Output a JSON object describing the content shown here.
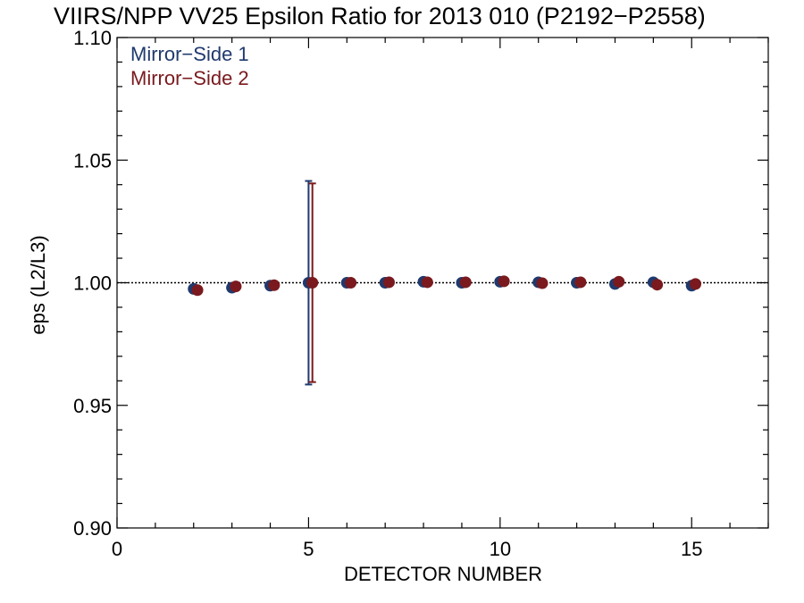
{
  "chart_data": {
    "type": "scatter",
    "title": "VIIRS/NPP VV25 Epsilon Ratio for 2013 010 (P2192−P2558)",
    "xlabel": "DETECTOR NUMBER",
    "ylabel": "eps (L2/L3)",
    "xlim": [
      0,
      17
    ],
    "ylim": [
      0.9,
      1.1
    ],
    "xticks": [
      0,
      5,
      10,
      15
    ],
    "xtick_labels": [
      "0",
      "5",
      "10",
      "15"
    ],
    "yticks": [
      0.9,
      0.95,
      1.0,
      1.05,
      1.1
    ],
    "ytick_labels": [
      "0.90",
      "0.95",
      "1.00",
      "1.05",
      "1.10"
    ],
    "reference_line": 1.0,
    "legend_position": "top-left",
    "series": [
      {
        "name": "Mirror−Side 1",
        "color": "#1f3a6e",
        "x": [
          2,
          3,
          4,
          5,
          6,
          7,
          8,
          9,
          10,
          11,
          12,
          13,
          14,
          15
        ],
        "y": [
          0.9975,
          0.998,
          0.9988,
          1.0,
          1.0,
          1.0,
          1.0004,
          1.0,
          1.0004,
          1.0002,
          1.0,
          0.9995,
          1.0002,
          0.9988
        ],
        "error_bars": [
          {
            "x": 5,
            "low": 0.9585,
            "high": 1.0415
          }
        ]
      },
      {
        "name": "Mirror−Side 2",
        "color": "#7a1a1e",
        "x": [
          2.1,
          3.1,
          4.1,
          5.1,
          6.1,
          7.1,
          8.1,
          9.1,
          10.1,
          11.1,
          12.1,
          13.1,
          14.1,
          15.1
        ],
        "y": [
          0.997,
          0.9985,
          0.999,
          1.0,
          1.0,
          1.0002,
          1.0002,
          1.0002,
          1.0006,
          0.9998,
          1.0002,
          1.0004,
          0.9992,
          0.9995
        ],
        "error_bars": [
          {
            "x": 5.1,
            "low": 0.9595,
            "high": 1.0405
          }
        ]
      }
    ]
  }
}
